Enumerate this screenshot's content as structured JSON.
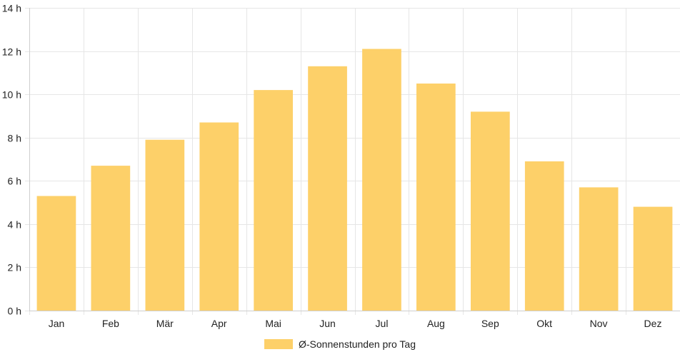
{
  "colors": {
    "bar": "#fdd069",
    "grid": "#e6e6e6",
    "axis": "#cfcfcf",
    "text": "#222222"
  },
  "chart_data": {
    "type": "bar",
    "categories": [
      "Jan",
      "Feb",
      "Mär",
      "Apr",
      "Mai",
      "Jun",
      "Jul",
      "Aug",
      "Sep",
      "Okt",
      "Nov",
      "Dez"
    ],
    "series": [
      {
        "name": "Ø-Sonnenstunden pro Tag",
        "values": [
          5.3,
          6.7,
          7.9,
          8.7,
          10.2,
          11.3,
          12.1,
          10.5,
          9.2,
          6.9,
          5.7,
          4.8
        ]
      }
    ],
    "ylim": [
      0,
      14
    ],
    "yticks": [
      0,
      2,
      4,
      6,
      8,
      10,
      12,
      14
    ],
    "ytick_labels": [
      "0 h",
      "2 h",
      "4 h",
      "6 h",
      "8 h",
      "10 h",
      "12 h",
      "14 h"
    ],
    "grid": true,
    "legend": "bottom"
  }
}
